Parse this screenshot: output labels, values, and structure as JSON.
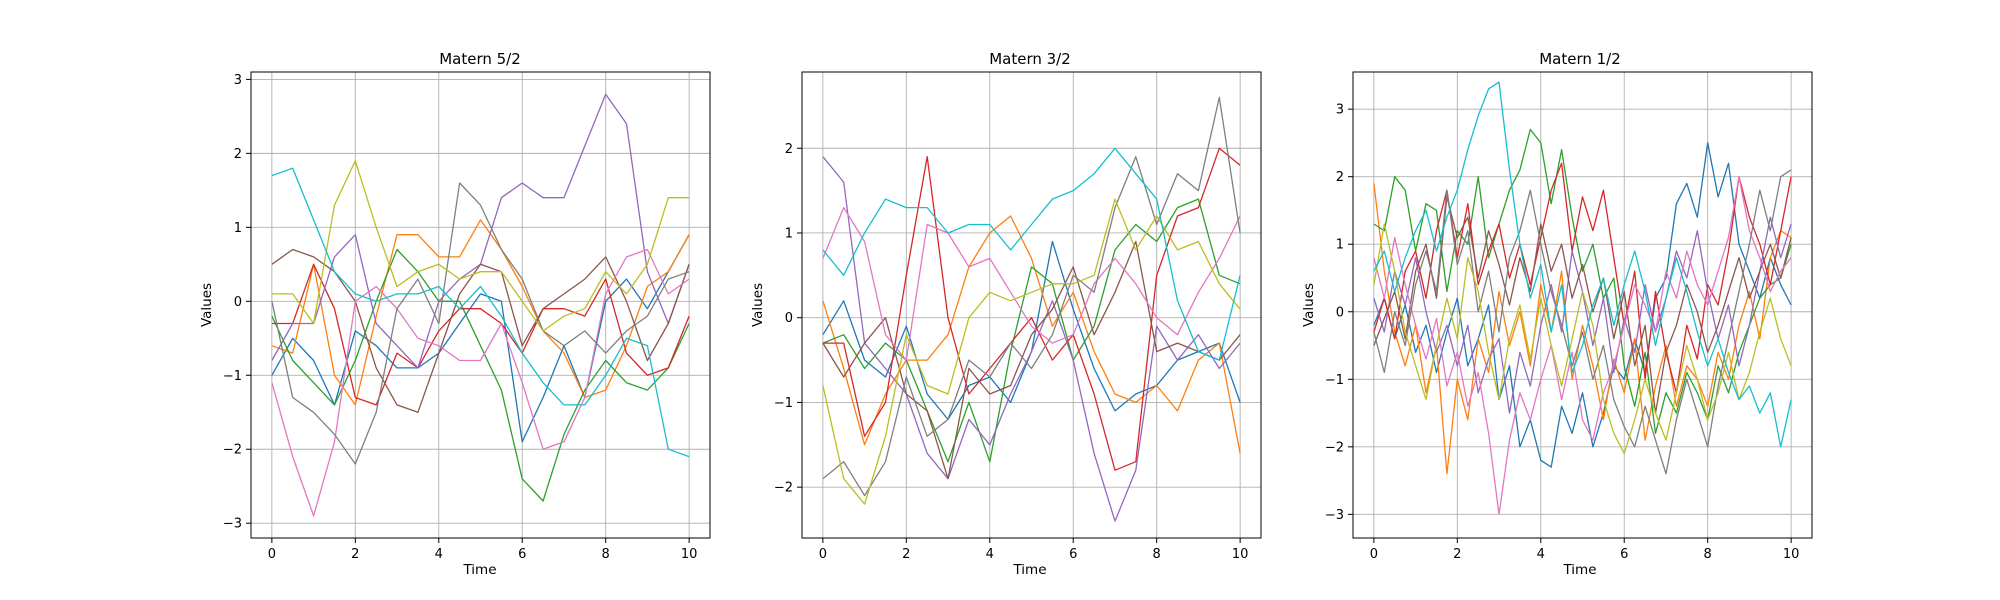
{
  "palette": [
    "#1f77b4",
    "#ff7f0e",
    "#2ca02c",
    "#d62728",
    "#9467bd",
    "#8c564b",
    "#e377c2",
    "#7f7f7f",
    "#bcbd22",
    "#17becf"
  ],
  "chart_data": [
    {
      "type": "line",
      "title": "Matern 5/2",
      "xlabel": "Time",
      "ylabel": "Values",
      "xlim": [
        -0.5,
        10.5
      ],
      "ylim": [
        -3.2,
        3.1
      ],
      "xticks": [
        0,
        2,
        4,
        6,
        8,
        10
      ],
      "yticks": [
        -3,
        -2,
        -1,
        0,
        1,
        2,
        3
      ],
      "grid": true,
      "x": [
        0,
        0.5,
        1,
        1.5,
        2,
        2.5,
        3,
        3.5,
        4,
        4.5,
        5,
        5.5,
        6,
        6.5,
        7,
        7.5,
        8,
        8.5,
        9,
        9.5,
        10
      ],
      "series": [
        {
          "values": [
            -1.0,
            -0.5,
            -0.8,
            -1.4,
            -0.4,
            -0.6,
            -0.9,
            -0.9,
            -0.7,
            -0.3,
            0.1,
            0.0,
            -1.9,
            -1.3,
            -0.6,
            -1.3,
            0.0,
            0.3,
            -0.1,
            0.4,
            0.9
          ]
        },
        {
          "values": [
            -0.6,
            -0.7,
            0.5,
            -1.0,
            -1.4,
            -0.2,
            0.9,
            0.9,
            0.6,
            0.6,
            1.1,
            0.7,
            0.2,
            -0.4,
            -0.7,
            -1.3,
            -1.2,
            -0.6,
            0.2,
            0.4,
            0.9
          ]
        },
        {
          "values": [
            -0.2,
            -0.8,
            -1.1,
            -1.4,
            -0.8,
            0.0,
            0.7,
            0.4,
            0.0,
            0.0,
            -0.6,
            -1.2,
            -2.4,
            -2.7,
            -1.8,
            -1.2,
            -0.8,
            -1.1,
            -1.2,
            -0.9,
            -0.3
          ]
        },
        {
          "values": [
            -0.3,
            -0.3,
            0.5,
            -0.1,
            -1.3,
            -1.4,
            -0.7,
            -0.9,
            -0.4,
            -0.1,
            -0.1,
            -0.3,
            -0.7,
            -0.1,
            -0.1,
            -0.2,
            0.3,
            -0.7,
            -1.0,
            -0.9,
            -0.2
          ]
        },
        {
          "values": [
            -0.8,
            -0.3,
            -0.3,
            0.6,
            0.9,
            -0.3,
            -0.6,
            -0.9,
            0.0,
            0.3,
            0.5,
            1.4,
            1.6,
            1.4,
            1.4,
            2.1,
            2.8,
            2.4,
            0.4,
            -0.3,
            0.5
          ]
        },
        {
          "values": [
            0.5,
            0.7,
            0.6,
            0.4,
            0.0,
            -0.9,
            -1.4,
            -1.5,
            -0.7,
            0.1,
            0.5,
            0.4,
            -0.6,
            -0.1,
            0.1,
            0.3,
            0.6,
            0.0,
            -0.8,
            -0.3,
            0.5
          ]
        },
        {
          "values": [
            -1.1,
            -2.1,
            -2.9,
            -1.9,
            0.0,
            0.2,
            -0.1,
            -0.5,
            -0.6,
            -0.8,
            -0.8,
            -0.3,
            -1.1,
            -2.0,
            -1.9,
            -1.3,
            0.1,
            0.6,
            0.7,
            0.1,
            0.3
          ]
        },
        {
          "values": [
            0.0,
            -1.3,
            -1.5,
            -1.8,
            -2.2,
            -1.5,
            -0.1,
            0.3,
            -0.3,
            1.6,
            1.3,
            0.7,
            0.3,
            -0.4,
            -0.6,
            -0.4,
            -0.7,
            -0.4,
            -0.2,
            0.3,
            0.4
          ]
        },
        {
          "values": [
            0.1,
            0.1,
            -0.3,
            1.3,
            1.9,
            1.0,
            0.2,
            0.4,
            0.5,
            0.3,
            0.4,
            0.4,
            0.0,
            -0.4,
            -0.2,
            -0.1,
            0.4,
            0.1,
            0.5,
            1.4,
            1.4
          ]
        },
        {
          "values": [
            1.7,
            1.8,
            1.1,
            0.4,
            0.1,
            0.0,
            0.1,
            0.1,
            0.2,
            -0.1,
            0.2,
            -0.2,
            -0.7,
            -1.1,
            -1.4,
            -1.4,
            -1.0,
            -0.5,
            -0.6,
            -2.0,
            -2.1
          ]
        }
      ]
    },
    {
      "type": "line",
      "title": "Matern 3/2",
      "xlabel": "Time",
      "ylabel": "Values",
      "xlim": [
        -0.5,
        10.5
      ],
      "ylim": [
        -2.6,
        2.9
      ],
      "xticks": [
        0,
        2,
        4,
        6,
        8,
        10
      ],
      "yticks": [
        -2,
        -1,
        0,
        1,
        2
      ],
      "grid": true,
      "x": [
        0,
        0.5,
        1,
        1.5,
        2,
        2.5,
        3,
        3.5,
        4,
        4.5,
        5,
        5.5,
        6,
        6.5,
        7,
        7.5,
        8,
        8.5,
        9,
        9.5,
        10
      ],
      "series": [
        {
          "values": [
            -0.2,
            0.2,
            -0.5,
            -0.7,
            -0.1,
            -0.9,
            -1.2,
            -0.8,
            -0.7,
            -1.0,
            -0.4,
            0.9,
            0.1,
            -0.6,
            -1.1,
            -0.9,
            -0.8,
            -0.5,
            -0.4,
            -0.3,
            -1.0
          ]
        },
        {
          "values": [
            0.2,
            -0.6,
            -1.5,
            -0.9,
            -0.5,
            -0.5,
            -0.2,
            0.6,
            1.0,
            1.2,
            0.7,
            -0.1,
            0.3,
            -0.4,
            -0.9,
            -1.0,
            -0.8,
            -1.1,
            -0.5,
            -0.3,
            -1.6
          ]
        },
        {
          "values": [
            -0.3,
            -0.2,
            -0.6,
            -0.3,
            -0.5,
            -1.1,
            -1.7,
            -1.0,
            -1.7,
            -0.4,
            0.6,
            0.4,
            -0.5,
            -0.1,
            0.8,
            1.1,
            0.9,
            1.3,
            1.4,
            0.5,
            0.4
          ]
        },
        {
          "values": [
            -0.3,
            -0.3,
            -1.4,
            -1.0,
            0.5,
            1.9,
            0.0,
            -0.9,
            -0.6,
            -0.3,
            0.0,
            -0.5,
            -0.2,
            -0.9,
            -1.8,
            -1.7,
            0.5,
            1.2,
            1.3,
            2.0,
            1.8
          ]
        },
        {
          "values": [
            1.9,
            1.6,
            -0.3,
            -0.6,
            -0.9,
            -1.6,
            -1.9,
            -1.2,
            -1.5,
            -0.9,
            -0.4,
            0.2,
            -0.5,
            -1.6,
            -2.4,
            -1.8,
            -0.1,
            -0.5,
            -0.2,
            -0.6,
            -0.3
          ]
        },
        {
          "values": [
            -0.3,
            -0.7,
            -0.3,
            0.0,
            -0.9,
            -1.1,
            -1.9,
            -0.6,
            -0.9,
            -0.8,
            -0.2,
            0.1,
            0.6,
            -0.2,
            0.3,
            0.9,
            -0.4,
            -0.3,
            -0.4,
            -0.5,
            -0.2
          ]
        },
        {
          "values": [
            0.7,
            1.3,
            0.9,
            -0.2,
            -0.5,
            1.1,
            1.0,
            0.6,
            0.7,
            0.3,
            -0.1,
            -0.3,
            -0.2,
            0.4,
            0.7,
            0.4,
            0.0,
            -0.2,
            0.3,
            0.7,
            1.2
          ]
        },
        {
          "values": [
            -1.9,
            -1.7,
            -2.1,
            -1.7,
            -0.7,
            -1.4,
            -1.2,
            -0.5,
            -0.7,
            -0.3,
            -0.6,
            -0.2,
            0.5,
            0.3,
            1.3,
            1.9,
            1.1,
            1.7,
            1.5,
            2.6,
            1.0
          ]
        },
        {
          "values": [
            -0.8,
            -1.9,
            -2.2,
            -1.4,
            -0.2,
            -0.8,
            -0.9,
            0.0,
            0.3,
            0.2,
            0.3,
            0.4,
            0.4,
            0.5,
            1.4,
            0.8,
            1.2,
            0.8,
            0.9,
            0.4,
            0.1
          ]
        },
        {
          "values": [
            0.8,
            0.5,
            1.0,
            1.4,
            1.3,
            1.3,
            1.0,
            1.1,
            1.1,
            0.8,
            1.1,
            1.4,
            1.5,
            1.7,
            2.0,
            1.7,
            1.4,
            0.2,
            -0.4,
            -0.5,
            0.5
          ]
        }
      ]
    },
    {
      "type": "line",
      "title": "Matern 1/2",
      "xlabel": "Time",
      "ylabel": "Values",
      "xlim": [
        -0.5,
        10.5
      ],
      "ylim": [
        -3.35,
        3.55
      ],
      "xticks": [
        0,
        2,
        4,
        6,
        8,
        10
      ],
      "yticks": [
        -3,
        -2,
        -1,
        0,
        1,
        2,
        3
      ],
      "grid": true,
      "x": [
        0,
        0.25,
        0.5,
        0.75,
        1,
        1.25,
        1.5,
        1.75,
        2,
        2.25,
        2.5,
        2.75,
        3,
        3.25,
        3.5,
        3.75,
        4,
        4.25,
        4.5,
        4.75,
        5,
        5.25,
        5.5,
        5.75,
        6,
        6.25,
        6.5,
        6.75,
        7,
        7.25,
        7.5,
        7.75,
        8,
        8.25,
        8.5,
        8.75,
        9,
        9.25,
        9.5,
        9.75,
        10
      ],
      "series": [
        {
          "values": [
            -0.2,
            0.2,
            -0.4,
            0.1,
            -0.6,
            -0.2,
            -0.9,
            -0.3,
            0.2,
            -0.8,
            -0.4,
            0.1,
            -1.3,
            -0.8,
            -2.0,
            -1.6,
            -2.2,
            -2.3,
            -1.4,
            -1.8,
            -1.2,
            -2.0,
            -1.5,
            -0.8,
            -1.0,
            -0.4,
            -0.9,
            0.2,
            0.5,
            1.6,
            1.9,
            1.4,
            2.5,
            1.7,
            2.2,
            1.0,
            0.6,
            0.2,
            0.8,
            0.4,
            0.1
          ]
        },
        {
          "values": [
            1.9,
            0.6,
            -0.3,
            -0.8,
            -0.2,
            -1.2,
            -0.5,
            -2.4,
            -1.0,
            -1.6,
            -0.4,
            -0.9,
            0.3,
            -0.5,
            0.0,
            -0.8,
            0.4,
            -0.3,
            0.6,
            -1.0,
            -0.2,
            -0.8,
            -1.6,
            -0.7,
            -1.2,
            -0.4,
            -1.9,
            -1.1,
            -0.5,
            -1.4,
            -0.8,
            -1.0,
            -1.4,
            -0.6,
            -1.0,
            -0.2,
            0.3,
            -0.4,
            0.8,
            1.2,
            1.1
          ]
        },
        {
          "values": [
            1.3,
            1.2,
            2.0,
            1.8,
            0.9,
            1.6,
            1.5,
            0.3,
            1.2,
            1.0,
            2.0,
            0.8,
            1.3,
            1.8,
            2.1,
            2.7,
            2.5,
            1.6,
            2.4,
            1.4,
            0.6,
            1.0,
            0.2,
            0.5,
            -0.8,
            -1.4,
            -0.6,
            -1.8,
            -1.2,
            -1.5,
            -0.9,
            -1.2,
            -1.6,
            -0.8,
            -1.2,
            -0.6,
            -0.2,
            0.2,
            0.4,
            0.5,
            1.0
          ]
        },
        {
          "values": [
            -0.3,
            0.2,
            -0.4,
            0.6,
            0.9,
            0.2,
            1.2,
            1.8,
            0.8,
            1.6,
            0.4,
            0.9,
            1.3,
            0.5,
            1.0,
            0.4,
            1.1,
            1.8,
            2.2,
            0.9,
            1.7,
            1.2,
            1.8,
            0.8,
            -0.2,
            0.6,
            -1.0,
            0.3,
            -0.6,
            -1.2,
            -0.2,
            -0.7,
            0.4,
            0.1,
            0.9,
            2.0,
            1.4,
            1.0,
            0.4,
            1.2,
            2.0
          ]
        },
        {
          "values": [
            0.2,
            -0.3,
            0.6,
            0.1,
            0.8,
            0.0,
            -0.6,
            -0.2,
            -0.8,
            -0.2,
            -1.2,
            -0.7,
            -0.4,
            -1.5,
            -0.6,
            -1.1,
            -0.2,
            0.4,
            -0.3,
            0.9,
            0.3,
            -0.5,
            0.2,
            -0.9,
            -0.1,
            -0.6,
            0.4,
            -0.3,
            0.2,
            0.9,
            0.5,
            1.2,
            0.3,
            -0.4,
            0.1,
            -0.8,
            -0.2,
            0.6,
            1.4,
            0.8,
            1.3
          ]
        },
        {
          "values": [
            -0.5,
            -0.1,
            0.3,
            -0.4,
            0.6,
            1.0,
            0.2,
            1.7,
            1.1,
            1.4,
            0.5,
            1.2,
            0.7,
            0.1,
            0.8,
            0.3,
            1.3,
            0.6,
            1.0,
            0.2,
            0.7,
            0.0,
            0.5,
            -0.4,
            0.3,
            -0.8,
            -0.2,
            -1.5,
            -0.6,
            -0.2,
            0.4,
            0.0,
            -0.6,
            -0.2,
            0.3,
            0.8,
            0.2,
            0.6,
            1.0,
            0.5,
            1.1
          ]
        },
        {
          "values": [
            0.8,
            0.2,
            1.1,
            0.4,
            -0.2,
            -0.7,
            -0.1,
            -1.1,
            -0.6,
            -1.4,
            -0.9,
            -1.8,
            -3.0,
            -1.9,
            -1.2,
            -1.6,
            -1.0,
            -0.5,
            -1.3,
            -0.6,
            -1.6,
            -1.9,
            -1.2,
            -0.8,
            -0.2,
            0.4,
            0.1,
            -0.3,
            0.6,
            0.2,
            0.9,
            0.4,
            0.1,
            0.6,
            1.1,
            2.0,
            1.2,
            0.8,
            0.3,
            0.6,
            0.8
          ]
        },
        {
          "values": [
            -0.3,
            -0.9,
            0.0,
            -0.5,
            0.4,
            0.9,
            0.3,
            1.8,
            0.7,
            1.2,
            0.0,
            0.6,
            -0.3,
            0.8,
            1.2,
            1.8,
            1.0,
            0.3,
            -0.2,
            -0.8,
            -0.3,
            -1.0,
            -0.5,
            -1.3,
            -1.7,
            -2.0,
            -1.4,
            -1.9,
            -2.4,
            -1.6,
            -1.0,
            -1.5,
            -2.0,
            -1.1,
            -0.4,
            0.3,
            1.0,
            1.8,
            1.2,
            2.0,
            2.1
          ]
        },
        {
          "values": [
            0.4,
            1.3,
            0.6,
            -0.3,
            -0.8,
            -1.3,
            -0.5,
            0.2,
            -0.4,
            0.8,
            0.3,
            -0.6,
            -1.3,
            -0.4,
            0.1,
            -0.7,
            0.2,
            -0.5,
            -1.1,
            -0.4,
            0.3,
            -0.2,
            -1.3,
            -1.8,
            -2.1,
            -1.6,
            -1.0,
            -1.5,
            -1.9,
            -1.2,
            -0.5,
            -1.0,
            -1.6,
            -1.2,
            -0.6,
            -1.3,
            -0.9,
            -0.3,
            0.2,
            -0.4,
            -0.8
          ]
        },
        {
          "values": [
            0.6,
            0.9,
            0.3,
            0.8,
            1.2,
            1.5,
            0.9,
            1.4,
            1.8,
            2.4,
            2.9,
            3.3,
            3.4,
            2.1,
            1.0,
            0.2,
            0.7,
            -0.3,
            0.4,
            -0.9,
            -0.5,
            0.1,
            0.5,
            -0.2,
            0.4,
            0.9,
            0.3,
            -0.5,
            0.2,
            0.8,
            0.3,
            -0.3,
            -0.8,
            -0.4,
            -0.9,
            -1.3,
            -1.1,
            -1.5,
            -1.2,
            -2.0,
            -1.3
          ]
        }
      ]
    }
  ]
}
